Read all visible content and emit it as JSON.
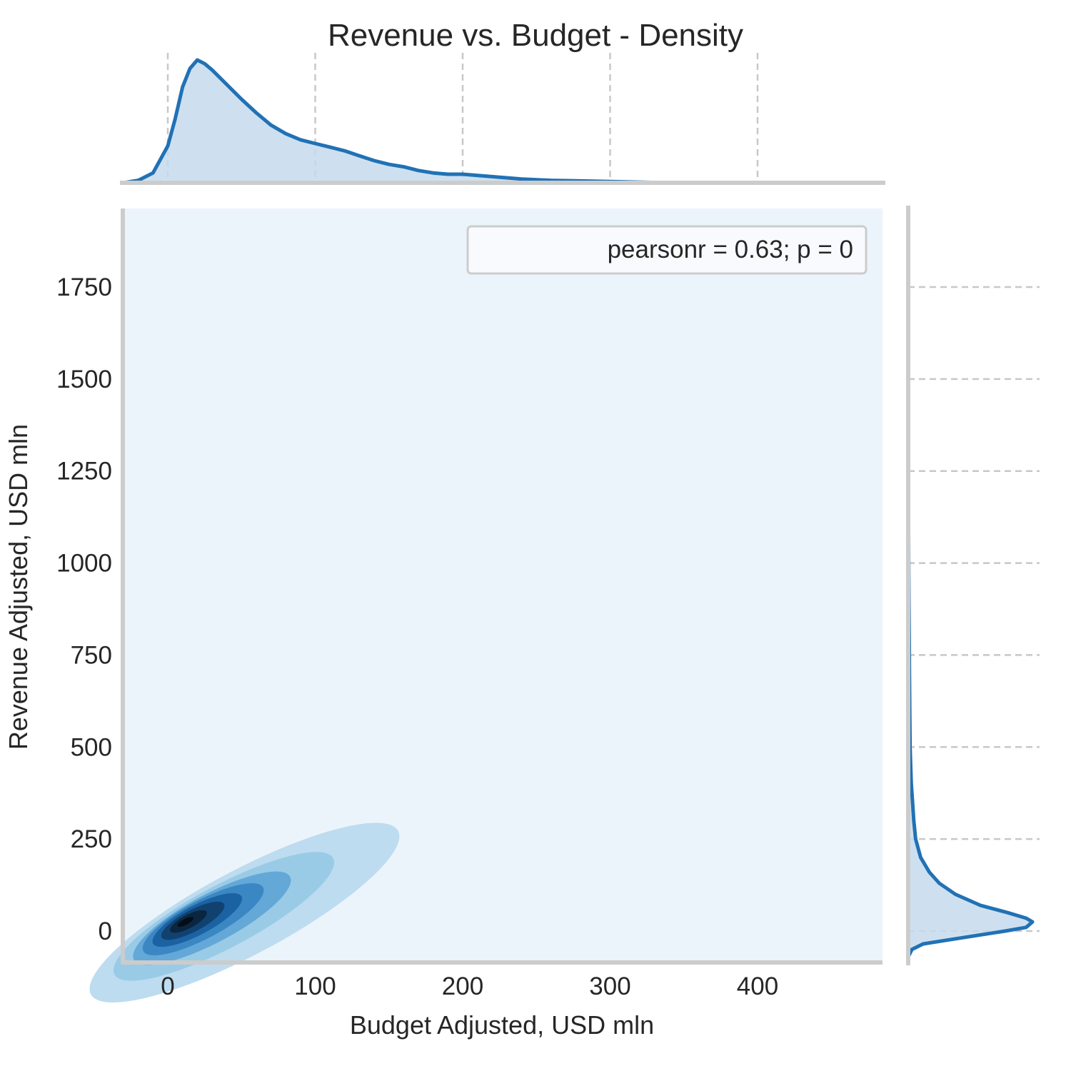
{
  "chart_data": {
    "type": "kde-joint",
    "title": "Revenue vs. Budget - Density",
    "xlabel": "Budget Adjusted, USD mln",
    "ylabel": "Revenue Adjusted, USD mln",
    "xlim": [
      -32,
      482
    ],
    "ylim": [
      -90,
      1960
    ],
    "xticks": [
      0,
      100,
      200,
      300,
      400
    ],
    "yticks": [
      0,
      250,
      500,
      750,
      1000,
      1250,
      1500,
      1750
    ],
    "xtick_labels": [
      "0",
      "100",
      "200",
      "300",
      "400"
    ],
    "ytick_labels": [
      "0",
      "250",
      "500",
      "750",
      "1000",
      "1250",
      "1500",
      "1750"
    ],
    "grid": "dashed",
    "annotation": "pearsonr = 0.63; p = 0",
    "legend_position": "upper right",
    "colors": {
      "line": "#2171b5",
      "fill": "#c6dbec",
      "background": "#ecf4fb",
      "spine": "#cccccc",
      "grid": "#c8c8c8",
      "text": "#262626"
    },
    "marginal_x": {
      "x": [
        -30,
        -20,
        -10,
        0,
        5,
        10,
        15,
        20,
        25,
        30,
        40,
        50,
        60,
        70,
        80,
        90,
        100,
        110,
        120,
        130,
        140,
        150,
        160,
        170,
        180,
        190,
        200,
        220,
        240,
        260,
        280,
        300,
        320,
        340
      ],
      "density": [
        0.0,
        0.02,
        0.08,
        0.3,
        0.52,
        0.78,
        0.93,
        1.0,
        0.97,
        0.92,
        0.8,
        0.68,
        0.57,
        0.47,
        0.4,
        0.35,
        0.32,
        0.29,
        0.26,
        0.22,
        0.18,
        0.15,
        0.13,
        0.1,
        0.08,
        0.07,
        0.07,
        0.05,
        0.03,
        0.02,
        0.015,
        0.01,
        0.005,
        0.0
      ]
    },
    "marginal_y": {
      "y": [
        -70,
        -50,
        -35,
        -20,
        0,
        10,
        25,
        35,
        50,
        70,
        100,
        130,
        160,
        200,
        250,
        300,
        350,
        400,
        500,
        600,
        700,
        800,
        900,
        1000,
        1100,
        1200,
        1300
      ],
      "density": [
        0.0,
        0.03,
        0.12,
        0.4,
        0.78,
        0.95,
        1.0,
        0.95,
        0.8,
        0.58,
        0.38,
        0.25,
        0.17,
        0.1,
        0.06,
        0.045,
        0.035,
        0.025,
        0.015,
        0.012,
        0.01,
        0.008,
        0.006,
        0.004,
        0.003,
        0.002,
        0.0
      ]
    },
    "kde_levels": [
      {
        "level": 1,
        "color": "#bddcf0",
        "center": [
          52,
          50
        ],
        "rx": 118,
        "ry": 115
      },
      {
        "level": 2,
        "color": "#9acbe6",
        "center": [
          38,
          40
        ],
        "rx": 84,
        "ry": 85
      },
      {
        "level": 3,
        "color": "#64a8d8",
        "center": [
          30,
          35
        ],
        "rx": 60,
        "ry": 66
      },
      {
        "level": 4,
        "color": "#3b87c4",
        "center": [
          24,
          32
        ],
        "rx": 46,
        "ry": 52
      },
      {
        "level": 5,
        "color": "#1b62a3",
        "center": [
          20,
          30
        ],
        "rx": 34,
        "ry": 40
      },
      {
        "level": 6,
        "color": "#11426f",
        "center": [
          17,
          28
        ],
        "rx": 24,
        "ry": 29
      },
      {
        "level": 7,
        "color": "#0a2640",
        "center": [
          14,
          26
        ],
        "rx": 14,
        "ry": 18
      },
      {
        "level": 8,
        "color": "#040d18",
        "center": [
          12,
          25
        ],
        "rx": 6,
        "ry": 8
      }
    ]
  }
}
